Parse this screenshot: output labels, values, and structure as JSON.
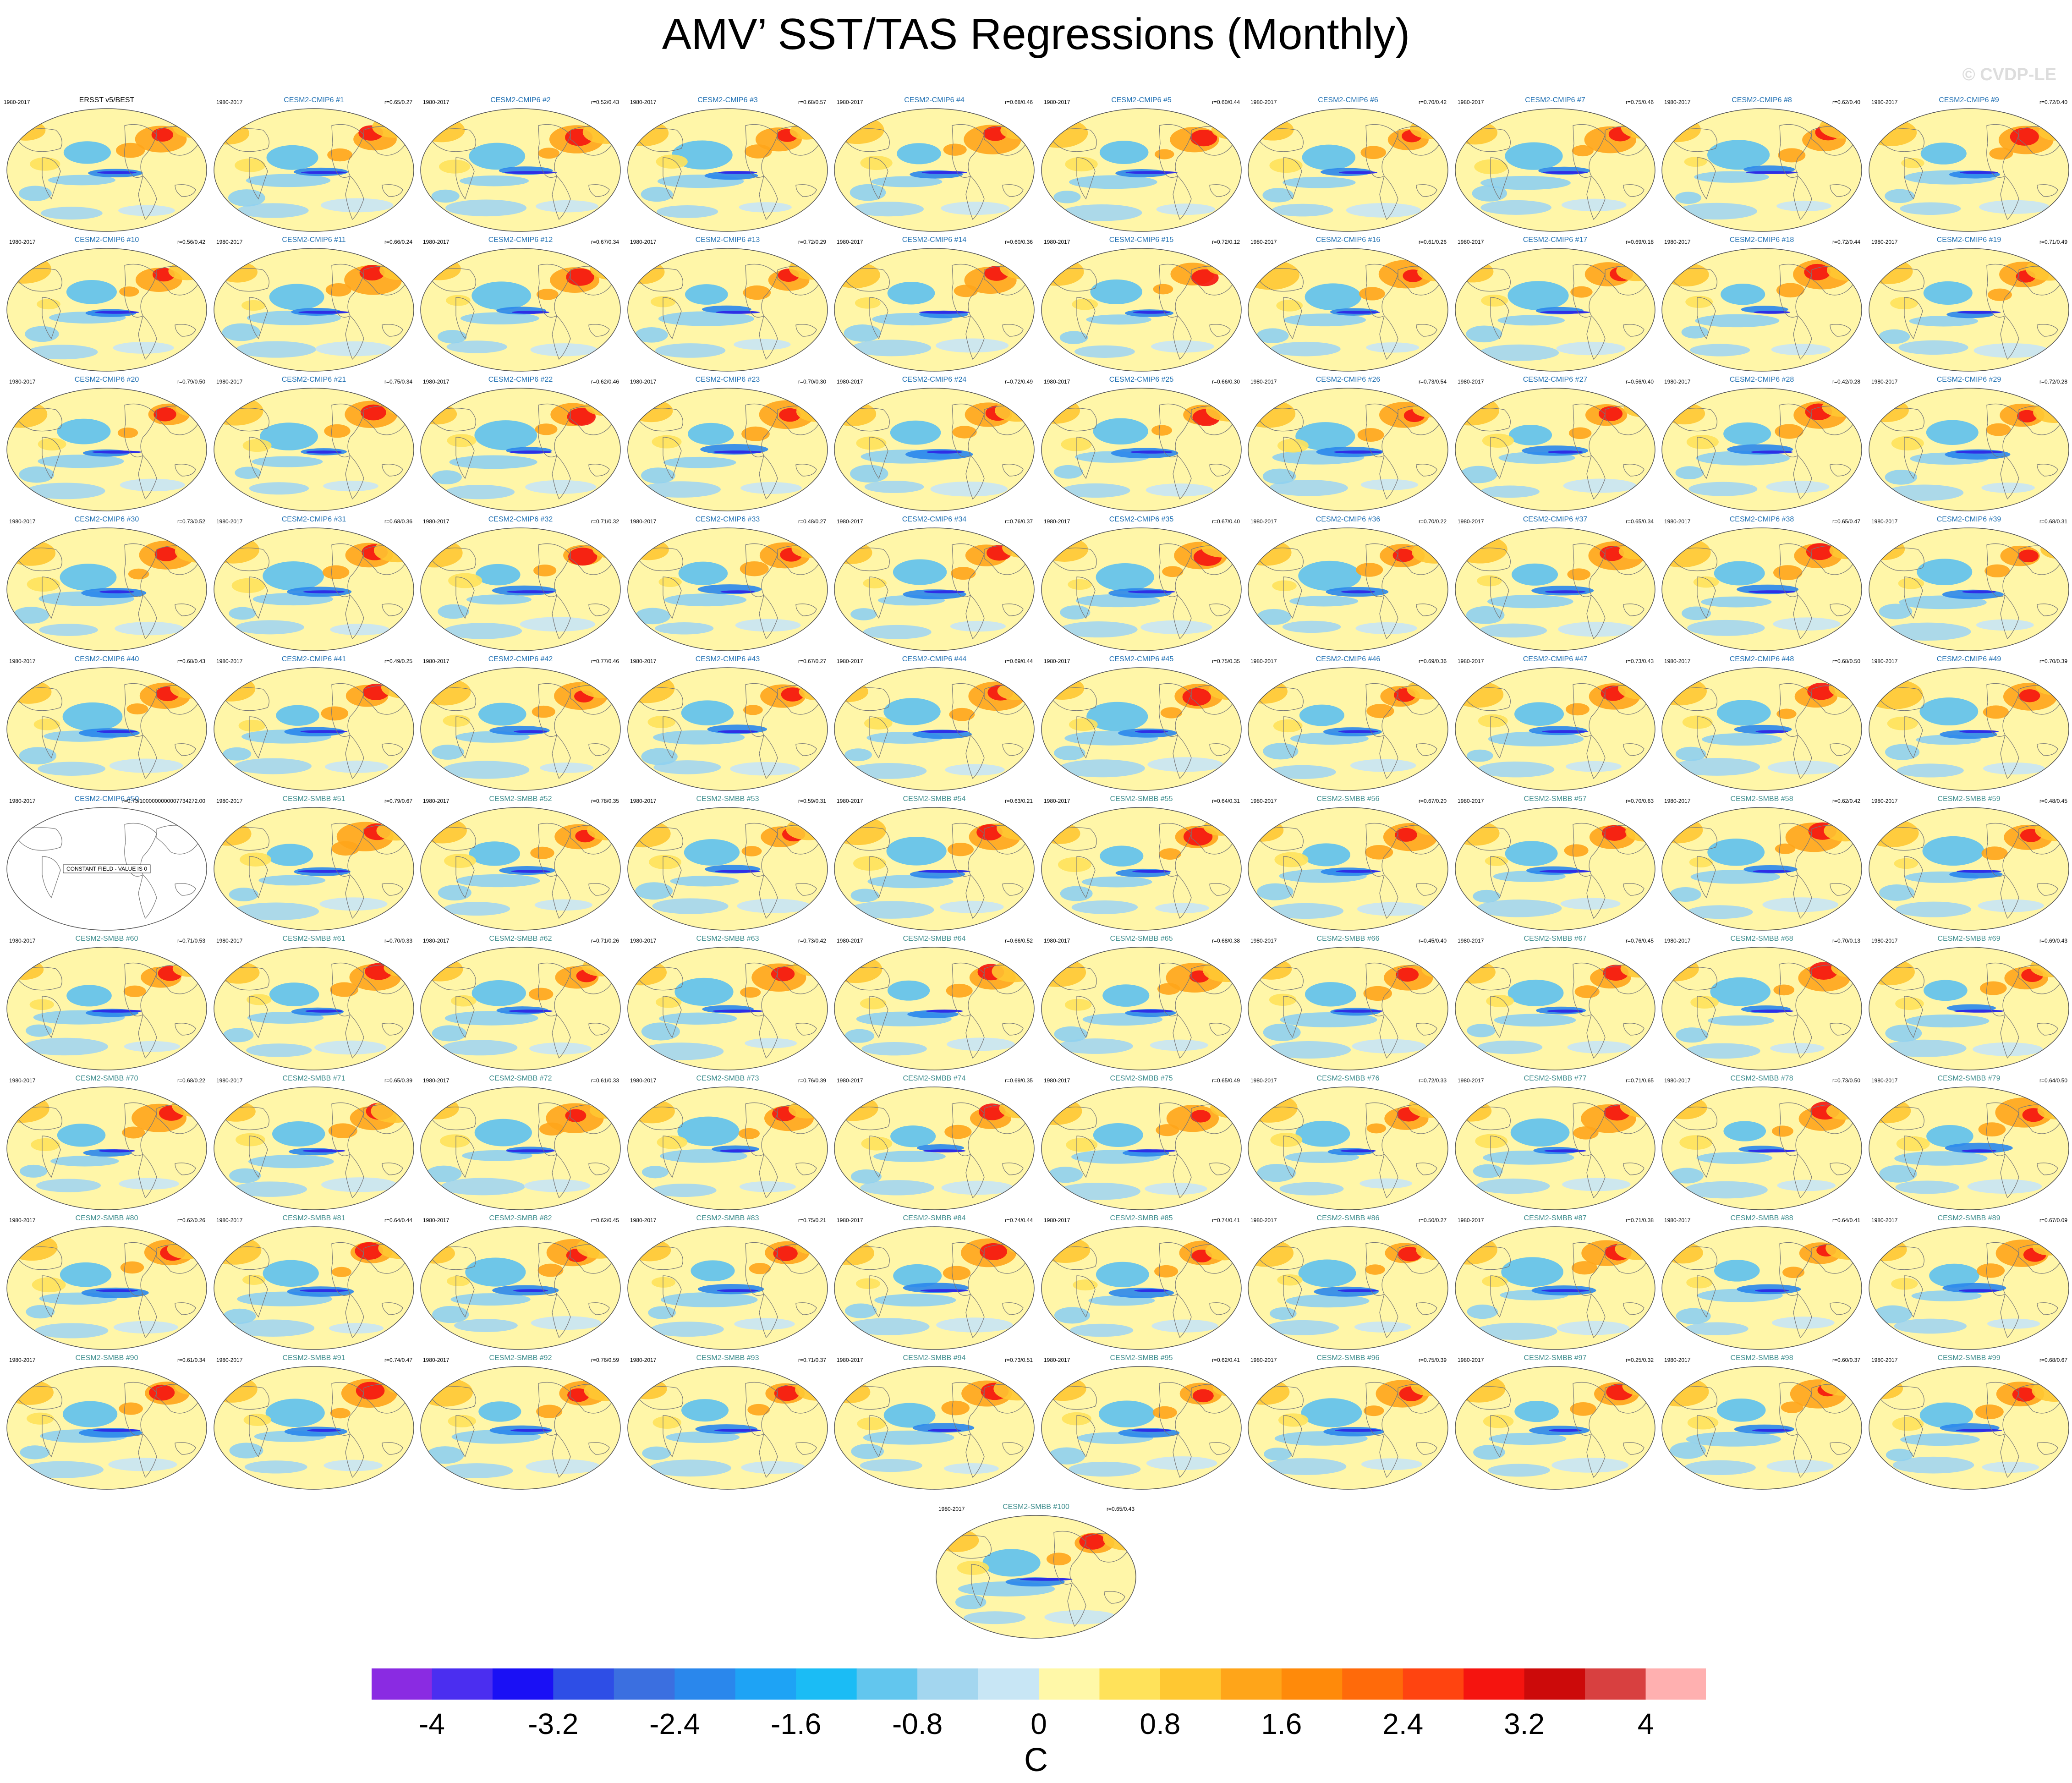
{
  "title": "AMV’ SST/TAS Regressions (Monthly)",
  "watermark": "© CVDP-LE",
  "period": "1980-2017",
  "panels": [
    {
      "name": "ERSST v5/BEST",
      "r": "",
      "obs": true
    },
    {
      "name": "CESM2-CMIP6 #1",
      "r": "r=0.65/0.27"
    },
    {
      "name": "CESM2-CMIP6 #2",
      "r": "r=0.52/0.43"
    },
    {
      "name": "CESM2-CMIP6 #3",
      "r": "r=0.68/0.57"
    },
    {
      "name": "CESM2-CMIP6 #4",
      "r": "r=0.68/0.46"
    },
    {
      "name": "CESM2-CMIP6 #5",
      "r": "r=0.60/0.44"
    },
    {
      "name": "CESM2-CMIP6 #6",
      "r": "r=0.70/0.42"
    },
    {
      "name": "CESM2-CMIP6 #7",
      "r": "r=0.75/0.46"
    },
    {
      "name": "CESM2-CMIP6 #8",
      "r": "r=0.62/0.40"
    },
    {
      "name": "CESM2-CMIP6 #9",
      "r": "r=0.72/0.40"
    },
    {
      "name": "CESM2-CMIP6 #10",
      "r": "r=0.56/0.42"
    },
    {
      "name": "CESM2-CMIP6 #11",
      "r": "r=0.66/0.24"
    },
    {
      "name": "CESM2-CMIP6 #12",
      "r": "r=0.67/0.34"
    },
    {
      "name": "CESM2-CMIP6 #13",
      "r": "r=0.72/0.29"
    },
    {
      "name": "CESM2-CMIP6 #14",
      "r": "r=0.60/0.36"
    },
    {
      "name": "CESM2-CMIP6 #15",
      "r": "r=0.72/0.12"
    },
    {
      "name": "CESM2-CMIP6 #16",
      "r": "r=0.61/0.26"
    },
    {
      "name": "CESM2-CMIP6 #17",
      "r": "r=0.69/0.18"
    },
    {
      "name": "CESM2-CMIP6 #18",
      "r": "r=0.72/0.44"
    },
    {
      "name": "CESM2-CMIP6 #19",
      "r": "r=0.71/0.49"
    },
    {
      "name": "CESM2-CMIP6 #20",
      "r": "r=0.79/0.50"
    },
    {
      "name": "CESM2-CMIP6 #21",
      "r": "r=0.75/0.34"
    },
    {
      "name": "CESM2-CMIP6 #22",
      "r": "r=0.62/0.46"
    },
    {
      "name": "CESM2-CMIP6 #23",
      "r": "r=0.70/0.30"
    },
    {
      "name": "CESM2-CMIP6 #24",
      "r": "r=0.72/0.49"
    },
    {
      "name": "CESM2-CMIP6 #25",
      "r": "r=0.66/0.30"
    },
    {
      "name": "CESM2-CMIP6 #26",
      "r": "r=0.73/0.54"
    },
    {
      "name": "CESM2-CMIP6 #27",
      "r": "r=0.56/0.40"
    },
    {
      "name": "CESM2-CMIP6 #28",
      "r": "r=0.42/0.28"
    },
    {
      "name": "CESM2-CMIP6 #29",
      "r": "r=0.72/0.28"
    },
    {
      "name": "CESM2-CMIP6 #30",
      "r": "r=0.73/0.52"
    },
    {
      "name": "CESM2-CMIP6 #31",
      "r": "r=0.68/0.36"
    },
    {
      "name": "CESM2-CMIP6 #32",
      "r": "r=0.71/0.32"
    },
    {
      "name": "CESM2-CMIP6 #33",
      "r": "r=0.48/0.27"
    },
    {
      "name": "CESM2-CMIP6 #34",
      "r": "r=0.76/0.37"
    },
    {
      "name": "CESM2-CMIP6 #35",
      "r": "r=0.67/0.40"
    },
    {
      "name": "CESM2-CMIP6 #36",
      "r": "r=0.70/0.22"
    },
    {
      "name": "CESM2-CMIP6 #37",
      "r": "r=0.65/0.34"
    },
    {
      "name": "CESM2-CMIP6 #38",
      "r": "r=0.65/0.47"
    },
    {
      "name": "CESM2-CMIP6 #39",
      "r": "r=0.68/0.31"
    },
    {
      "name": "CESM2-CMIP6 #40",
      "r": "r=0.68/0.43"
    },
    {
      "name": "CESM2-CMIP6 #41",
      "r": "r=0.49/0.25"
    },
    {
      "name": "CESM2-CMIP6 #42",
      "r": "r=0.77/0.46"
    },
    {
      "name": "CESM2-CMIP6 #43",
      "r": "r=0.67/0.27"
    },
    {
      "name": "CESM2-CMIP6 #44",
      "r": "r=0.69/0.44"
    },
    {
      "name": "CESM2-CMIP6 #45",
      "r": "r=0.75/0.35"
    },
    {
      "name": "CESM2-CMIP6 #46",
      "r": "r=0.69/0.36"
    },
    {
      "name": "CESM2-CMIP6 #47",
      "r": "r=0.73/0.43"
    },
    {
      "name": "CESM2-CMIP6 #48",
      "r": "r=0.68/0.50"
    },
    {
      "name": "CESM2-CMIP6 #49",
      "r": "r=0.70/0.39"
    },
    {
      "name": "CESM2-CMIP6 #50",
      "r": "r=0.73/1000000000007734272.00",
      "blank": true,
      "note": "CONSTANT FIELD - VALUE IS 0"
    },
    {
      "name": "CESM2-SMBB #51",
      "r": "r=0.79/0.67"
    },
    {
      "name": "CESM2-SMBB #52",
      "r": "r=0.78/0.35"
    },
    {
      "name": "CESM2-SMBB #53",
      "r": "r=0.59/0.31"
    },
    {
      "name": "CESM2-SMBB #54",
      "r": "r=0.63/0.21"
    },
    {
      "name": "CESM2-SMBB #55",
      "r": "r=0.64/0.31"
    },
    {
      "name": "CESM2-SMBB #56",
      "r": "r=0.67/0.20"
    },
    {
      "name": "CESM2-SMBB #57",
      "r": "r=0.70/0.63"
    },
    {
      "name": "CESM2-SMBB #58",
      "r": "r=0.62/0.42"
    },
    {
      "name": "CESM2-SMBB #59",
      "r": "r=0.48/0.45"
    },
    {
      "name": "CESM2-SMBB #60",
      "r": "r=0.71/0.53"
    },
    {
      "name": "CESM2-SMBB #61",
      "r": "r=0.70/0.33"
    },
    {
      "name": "CESM2-SMBB #62",
      "r": "r=0.71/0.26"
    },
    {
      "name": "CESM2-SMBB #63",
      "r": "r=0.73/0.42"
    },
    {
      "name": "CESM2-SMBB #64",
      "r": "r=0.66/0.52"
    },
    {
      "name": "CESM2-SMBB #65",
      "r": "r=0.68/0.38"
    },
    {
      "name": "CESM2-SMBB #66",
      "r": "r=0.45/0.40"
    },
    {
      "name": "CESM2-SMBB #67",
      "r": "r=0.76/0.45"
    },
    {
      "name": "CESM2-SMBB #68",
      "r": "r=0.70/0.13"
    },
    {
      "name": "CESM2-SMBB #69",
      "r": "r=0.69/0.43"
    },
    {
      "name": "CESM2-SMBB #70",
      "r": "r=0.68/0.22"
    },
    {
      "name": "CESM2-SMBB #71",
      "r": "r=0.65/0.39"
    },
    {
      "name": "CESM2-SMBB #72",
      "r": "r=0.61/0.33"
    },
    {
      "name": "CESM2-SMBB #73",
      "r": "r=0.76/0.39"
    },
    {
      "name": "CESM2-SMBB #74",
      "r": "r=0.69/0.35"
    },
    {
      "name": "CESM2-SMBB #75",
      "r": "r=0.65/0.49"
    },
    {
      "name": "CESM2-SMBB #76",
      "r": "r=0.72/0.33"
    },
    {
      "name": "CESM2-SMBB #77",
      "r": "r=0.71/0.65"
    },
    {
      "name": "CESM2-SMBB #78",
      "r": "r=0.73/0.50"
    },
    {
      "name": "CESM2-SMBB #79",
      "r": "r=0.64/0.50"
    },
    {
      "name": "CESM2-SMBB #80",
      "r": "r=0.62/0.26"
    },
    {
      "name": "CESM2-SMBB #81",
      "r": "r=0.64/0.44"
    },
    {
      "name": "CESM2-SMBB #82",
      "r": "r=0.62/0.45"
    },
    {
      "name": "CESM2-SMBB #83",
      "r": "r=0.75/0.21"
    },
    {
      "name": "CESM2-SMBB #84",
      "r": "r=0.74/0.44"
    },
    {
      "name": "CESM2-SMBB #85",
      "r": "r=0.74/0.41"
    },
    {
      "name": "CESM2-SMBB #86",
      "r": "r=0.50/0.27"
    },
    {
      "name": "CESM2-SMBB #87",
      "r": "r=0.71/0.38"
    },
    {
      "name": "CESM2-SMBB #88",
      "r": "r=0.64/0.41"
    },
    {
      "name": "CESM2-SMBB #89",
      "r": "r=0.67/0.09"
    },
    {
      "name": "CESM2-SMBB #90",
      "r": "r=0.61/0.34"
    },
    {
      "name": "CESM2-SMBB #91",
      "r": "r=0.74/0.47"
    },
    {
      "name": "CESM2-SMBB #92",
      "r": "r=0.76/0.59"
    },
    {
      "name": "CESM2-SMBB #93",
      "r": "r=0.71/0.37"
    },
    {
      "name": "CESM2-SMBB #94",
      "r": "r=0.73/0.51"
    },
    {
      "name": "CESM2-SMBB #95",
      "r": "r=0.62/0.41"
    },
    {
      "name": "CESM2-SMBB #96",
      "r": "r=0.75/0.39"
    },
    {
      "name": "CESM2-SMBB #97",
      "r": "r=0.25/0.32"
    },
    {
      "name": "CESM2-SMBB #98",
      "r": "r=0.60/0.37"
    },
    {
      "name": "CESM2-SMBB #99",
      "r": "r=0.68/0.67"
    },
    {
      "name": "CESM2-SMBB #100",
      "r": "r=0.65/0.43"
    }
  ],
  "colors": {
    "cmip6_label": "#1f6fb2",
    "smbb_label": "#3c8c8c",
    "obs_label": "#000000",
    "ocean_neutral": "#fff6a8"
  },
  "colorbar": {
    "units": "C",
    "tick_labels": [
      "-4",
      "-3.2",
      "-2.4",
      "-1.6",
      "-0.8",
      "0",
      "0.8",
      "1.6",
      "2.4",
      "3.2",
      "4"
    ],
    "tick_values": [
      -4,
      -3.2,
      -2.4,
      -1.6,
      -0.8,
      0,
      0.8,
      1.6,
      2.4,
      3.2,
      4
    ],
    "min": -4.4,
    "max": 4.4,
    "colors": [
      "#8a2be2",
      "#4b2ef0",
      "#1a10f5",
      "#2e4ee6",
      "#3b6fe0",
      "#2a87ec",
      "#1ea3f5",
      "#1bbcf5",
      "#62c6ee",
      "#a3d6ef",
      "#c8e6f5",
      "#fff8a8",
      "#ffe25a",
      "#ffc832",
      "#ffa519",
      "#ff8a0a",
      "#ff6a0a",
      "#ff4410",
      "#f5140f",
      "#cc0a0a",
      "#d84040",
      "#ffb0b0"
    ]
  }
}
